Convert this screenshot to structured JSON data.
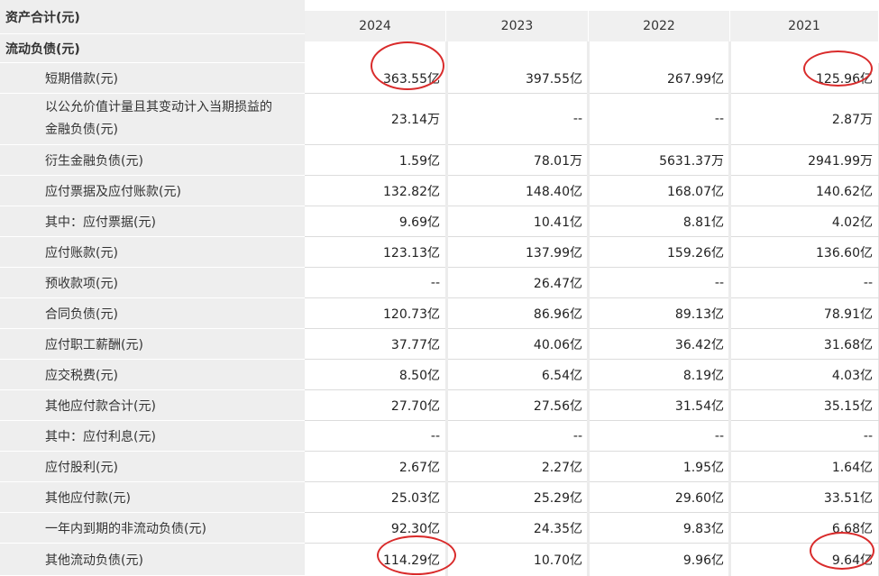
{
  "labels": {
    "total_assets": "资产合计(元)",
    "current_liabilities": "流动负债(元)",
    "short_term_borrowings": "短期借款(元)",
    "fvtpl_line1": "以公允价值计量且其变动计入当期损益的",
    "fvtpl_line2": "金融负债(元)",
    "derivative_liabilities": "衍生金融负债(元)",
    "notes_and_accounts_payable": "应付票据及应付账款(元)",
    "of_which_notes_payable": "其中：应付票据(元)",
    "accounts_payable": "应付账款(元)",
    "advance_receipts": "预收款项(元)",
    "contract_liabilities": "合同负债(元)",
    "payroll_payable": "应付职工薪酬(元)",
    "taxes_payable": "应交税费(元)",
    "other_payables_total": "其他应付款合计(元)",
    "of_which_interest_payable": "其中：应付利息(元)",
    "dividends_payable": "应付股利(元)",
    "other_payables": "其他应付款(元)",
    "noncurrent_due_within_year": "一年内到期的非流动负债(元)",
    "other_current_liabilities": "其他流动负债(元)"
  },
  "years": [
    "2024",
    "2023",
    "2022",
    "2021"
  ],
  "rows": [
    [
      "363.55亿",
      "397.55亿",
      "267.99亿",
      "125.96亿"
    ],
    [
      "23.14万",
      "--",
      "--",
      "2.87万"
    ],
    [
      "1.59亿",
      "78.01万",
      "5631.37万",
      "2941.99万"
    ],
    [
      "132.82亿",
      "148.40亿",
      "168.07亿",
      "140.62亿"
    ],
    [
      "9.69亿",
      "10.41亿",
      "8.81亿",
      "4.02亿"
    ],
    [
      "123.13亿",
      "137.99亿",
      "159.26亿",
      "136.60亿"
    ],
    [
      "--",
      "26.47亿",
      "--",
      "--"
    ],
    [
      "120.73亿",
      "86.96亿",
      "89.13亿",
      "78.91亿"
    ],
    [
      "37.77亿",
      "40.06亿",
      "36.42亿",
      "31.68亿"
    ],
    [
      "8.50亿",
      "6.54亿",
      "8.19亿",
      "4.03亿"
    ],
    [
      "27.70亿",
      "27.56亿",
      "31.54亿",
      "35.15亿"
    ],
    [
      "--",
      "--",
      "--",
      "--"
    ],
    [
      "2.67亿",
      "2.27亿",
      "1.95亿",
      "1.64亿"
    ],
    [
      "25.03亿",
      "25.29亿",
      "29.60亿",
      "33.51亿"
    ],
    [
      "92.30亿",
      "24.35亿",
      "9.83亿",
      "6.68亿"
    ],
    [
      "114.29亿",
      "10.70亿",
      "9.96亿",
      "9.64亿"
    ]
  ],
  "highlight_color": "#d92b2b"
}
